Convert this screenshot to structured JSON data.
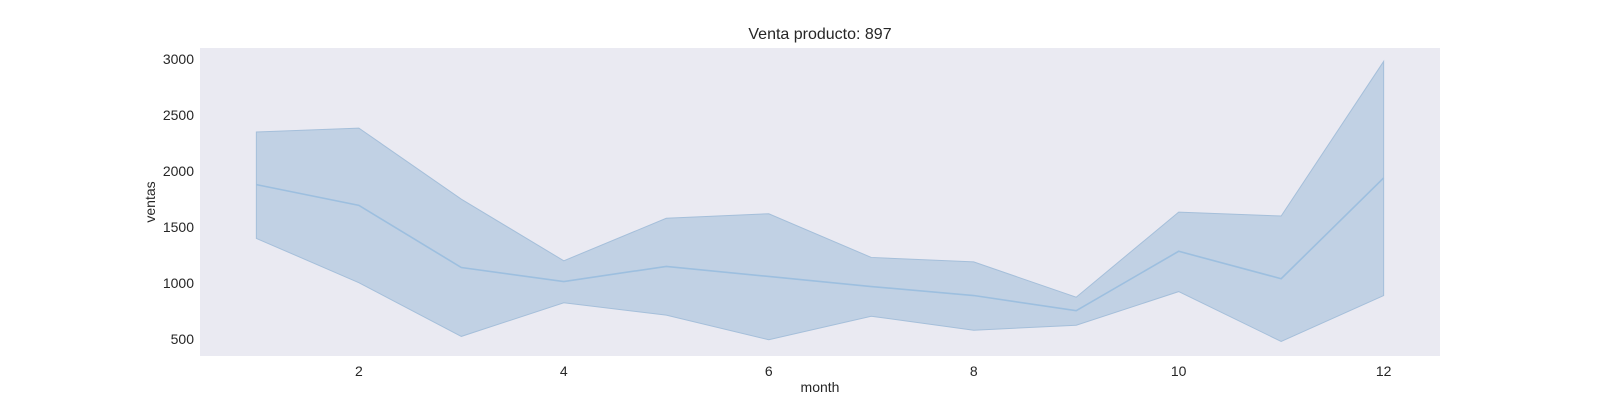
{
  "chart_data": {
    "type": "line",
    "title": "Venta producto: 897",
    "xlabel": "month",
    "ylabel": "ventas",
    "xlim": [
      0.45,
      12.55
    ],
    "ylim": [
      350,
      3100
    ],
    "xticks": [
      2,
      4,
      6,
      8,
      10,
      12
    ],
    "yticks": [
      500,
      1000,
      1500,
      2000,
      2500,
      3000
    ],
    "grid": false,
    "colors": {
      "background": "#eaeaf2",
      "line": "#9dbfdf",
      "band": "#a5bfda"
    },
    "x": [
      1,
      2,
      3,
      4,
      5,
      6,
      7,
      8,
      9,
      10,
      11,
      12
    ],
    "series": [
      {
        "values": [
          1880,
          1695,
          1140,
          1015,
          1150,
          1060,
          970,
          890,
          755,
          1285,
          1040,
          1940
        ],
        "lower": [
          1400,
          1005,
          525,
          825,
          715,
          495,
          705,
          580,
          625,
          925,
          480,
          890
        ],
        "upper": [
          2350,
          2385,
          1750,
          1200,
          1580,
          1620,
          1230,
          1190,
          875,
          1635,
          1600,
          2980
        ]
      }
    ]
  }
}
